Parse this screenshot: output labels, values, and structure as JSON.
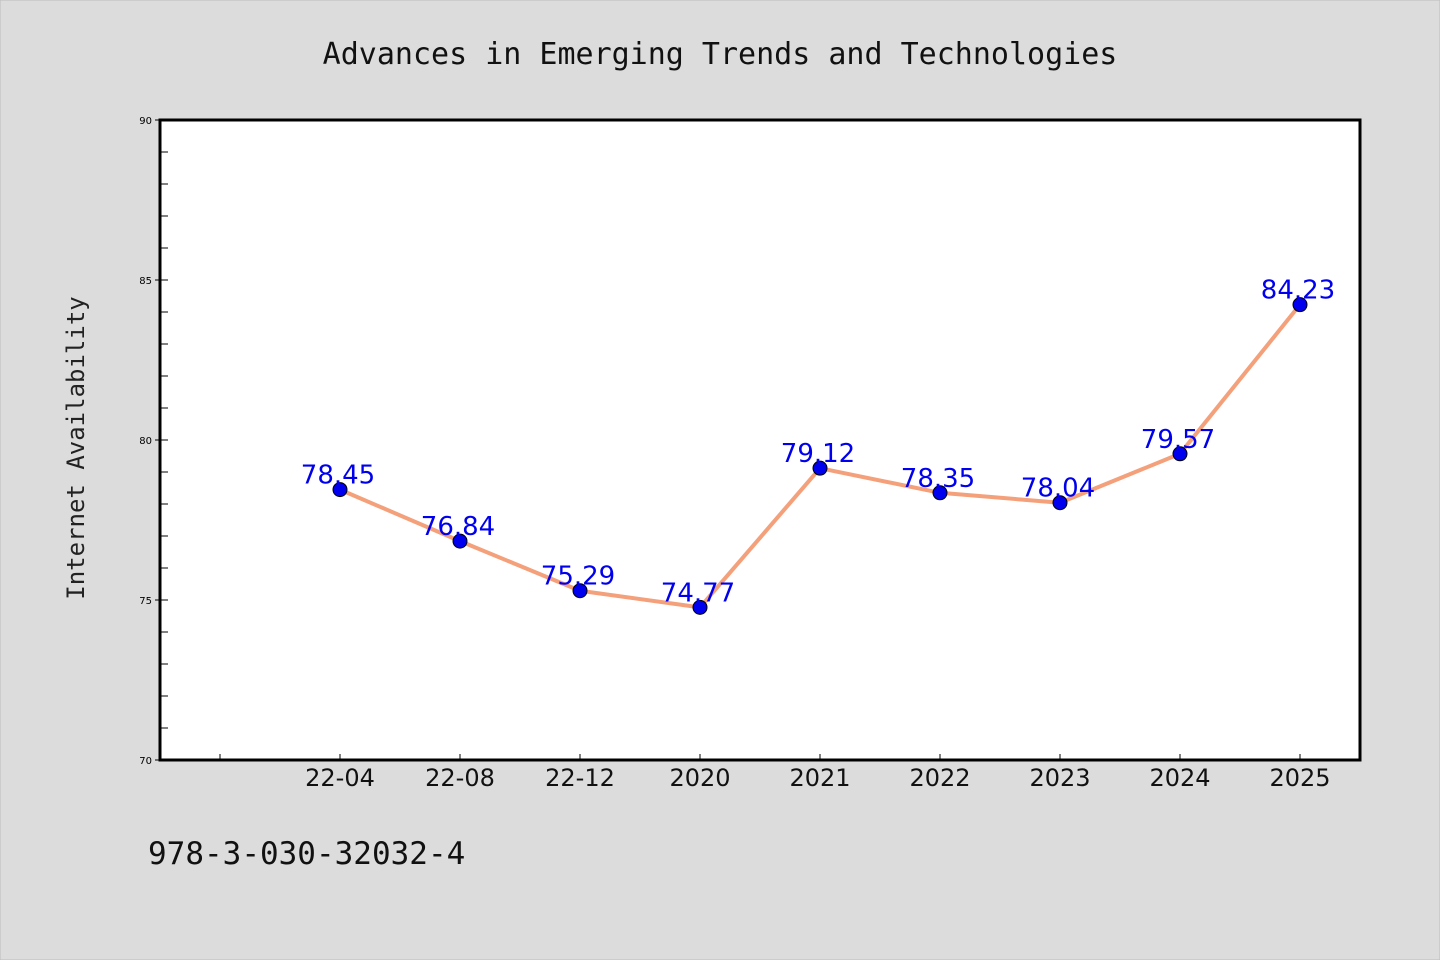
{
  "colors": {
    "background": "#dcdcdc",
    "plot_background": "#ffffff",
    "line": "#f4a07a",
    "marker": "#0000ee",
    "data_label": "#0000ee"
  },
  "footer_text": "978-3-030-32032-4",
  "chart_data": {
    "type": "line",
    "title": "Advances in Emerging Trends and Technologies",
    "xlabel": "",
    "ylabel": "Internet Availability",
    "categories": [
      "22-04",
      "22-08",
      "22-12",
      "2020",
      "2021",
      "2022",
      "2023",
      "2024",
      "2025"
    ],
    "series": [
      {
        "values": [
          78.45,
          76.84,
          75.29,
          74.77,
          79.12,
          78.35,
          78.04,
          79.57,
          84.23
        ]
      }
    ],
    "data_labels": [
      "78.45",
      "76.84",
      "75.29",
      "74.77",
      "79.12",
      "78.35",
      "78.04",
      "79.57",
      "84.23"
    ],
    "ylim": [
      70,
      90
    ],
    "yticks": [
      70,
      75,
      80,
      85,
      90
    ],
    "ytick_labels": [
      "70",
      "75",
      "80",
      "85",
      "90"
    ],
    "grid": false,
    "legend": "none"
  }
}
